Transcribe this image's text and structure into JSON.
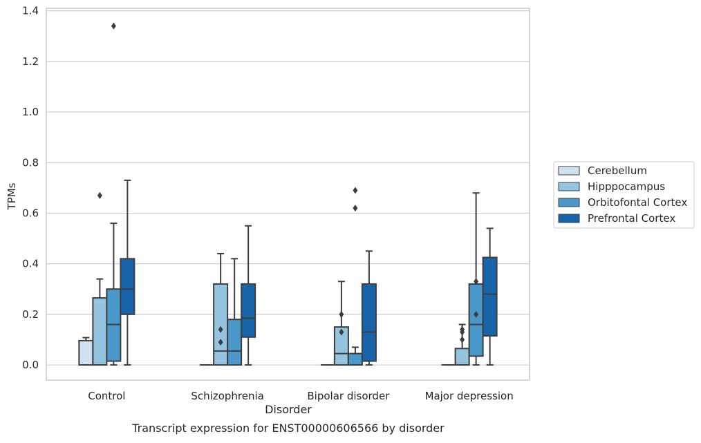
{
  "chart_data": {
    "type": "box",
    "caption": "Transcript expression for ENST00000606566 by disorder",
    "xlabel": "Disorder",
    "ylabel": "TPMs",
    "ylim": [
      -0.06,
      1.41
    ],
    "yticks": [
      0.0,
      0.2,
      0.4,
      0.6,
      0.8,
      1.0,
      1.2,
      1.4
    ],
    "ytick_labels": [
      "0.0",
      "0.2",
      "0.4",
      "0.6",
      "0.8",
      "1.0",
      "1.2",
      "1.4"
    ],
    "grid": "horizontal",
    "legend_placement": "right-outside",
    "categories": [
      "Control",
      "Schizophrenia",
      "Bipolar disorder",
      "Major depression"
    ],
    "series": [
      {
        "name": "Cerebellum",
        "color": "#d0e1f2",
        "boxes": [
          {
            "whislo": 0.0,
            "q1": 0.0,
            "med": 0.0,
            "q3": 0.096,
            "whishi": 0.108,
            "fliers": []
          },
          {
            "whislo": 0.0,
            "q1": 0.0,
            "med": 0.0,
            "q3": 0.0,
            "whishi": 0.0,
            "fliers": []
          },
          {
            "whislo": 0.0,
            "q1": 0.0,
            "med": 0.0,
            "q3": 0.0,
            "whishi": 0.0,
            "fliers": []
          },
          {
            "whislo": 0.0,
            "q1": 0.0,
            "med": 0.0,
            "q3": 0.0,
            "whishi": 0.0,
            "fliers": []
          }
        ]
      },
      {
        "name": "Hipppocampus",
        "color": "#94c4df",
        "boxes": [
          {
            "whislo": 0.0,
            "q1": 0.0,
            "med": 0.0,
            "q3": 0.265,
            "whishi": 0.34,
            "fliers": [
              0.67
            ]
          },
          {
            "whislo": 0.0,
            "q1": 0.0,
            "med": 0.055,
            "q3": 0.32,
            "whishi": 0.44,
            "fliers": [
              0.14,
              0.09
            ]
          },
          {
            "whislo": 0.0,
            "q1": 0.0,
            "med": 0.045,
            "q3": 0.15,
            "whishi": 0.33,
            "fliers": [
              0.2,
              0.13
            ]
          },
          {
            "whislo": 0.0,
            "q1": 0.0,
            "med": 0.0,
            "q3": 0.065,
            "whishi": 0.16,
            "fliers": [
              0.14,
              0.13,
              0.1
            ]
          }
        ]
      },
      {
        "name": "Orbitofontal Cortex",
        "color": "#4a98c9",
        "boxes": [
          {
            "whislo": 0.0,
            "q1": 0.015,
            "med": 0.16,
            "q3": 0.3,
            "whishi": 0.56,
            "fliers": [
              1.34
            ]
          },
          {
            "whislo": 0.0,
            "q1": 0.0,
            "med": 0.055,
            "q3": 0.18,
            "whishi": 0.42,
            "fliers": []
          },
          {
            "whislo": 0.0,
            "q1": 0.0,
            "med": 0.0,
            "q3": 0.045,
            "whishi": 0.07,
            "fliers": [
              0.69,
              0.62
            ]
          },
          {
            "whislo": 0.0,
            "q1": 0.035,
            "med": 0.16,
            "q3": 0.32,
            "whishi": 0.68,
            "fliers": [
              0.33,
              0.2
            ]
          }
        ]
      },
      {
        "name": "Prefrontal Cortex",
        "color": "#1764ab",
        "boxes": [
          {
            "whislo": 0.0,
            "q1": 0.2,
            "med": 0.3,
            "q3": 0.42,
            "whishi": 0.73,
            "fliers": []
          },
          {
            "whislo": 0.0,
            "q1": 0.11,
            "med": 0.185,
            "q3": 0.32,
            "whishi": 0.55,
            "fliers": []
          },
          {
            "whislo": 0.0,
            "q1": 0.015,
            "med": 0.13,
            "q3": 0.32,
            "whishi": 0.45,
            "fliers": []
          },
          {
            "whislo": 0.0,
            "q1": 0.115,
            "med": 0.28,
            "q3": 0.425,
            "whishi": 0.54,
            "fliers": []
          }
        ]
      }
    ]
  }
}
